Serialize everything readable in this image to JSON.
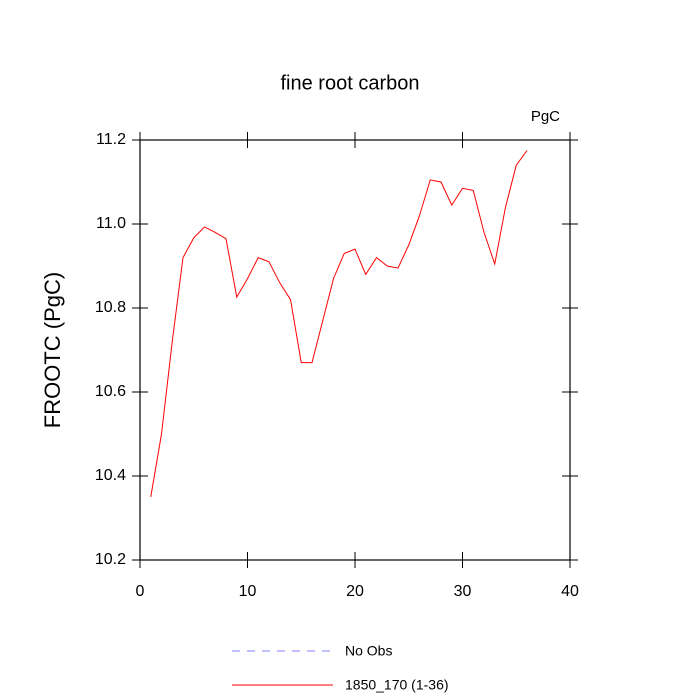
{
  "chart_data": {
    "type": "line",
    "title": "fine root carbon",
    "y_label": "FROOTC  (PgC)",
    "units_label": "PgC",
    "x": [
      1,
      2,
      3,
      4,
      5,
      6,
      7,
      8,
      9,
      10,
      11,
      12,
      13,
      14,
      15,
      16,
      17,
      18,
      19,
      20,
      21,
      22,
      23,
      24,
      25,
      26,
      27,
      28,
      29,
      30,
      31,
      32,
      33,
      34,
      35,
      36
    ],
    "series": [
      {
        "name": "No Obs",
        "color": "#8080ff",
        "dashed": true,
        "values": [
          null,
          null,
          null,
          null,
          null,
          null,
          null,
          null,
          null,
          null,
          null,
          null,
          null,
          null,
          null,
          null,
          null,
          null,
          null,
          null,
          null,
          null,
          null,
          null,
          null,
          null,
          null,
          null,
          null,
          null,
          null,
          null,
          null,
          null,
          null,
          null
        ]
      },
      {
        "name": "1850_170 (1-36)",
        "color": "#ff0000",
        "dashed": false,
        "values": [
          10.35,
          10.5,
          10.72,
          10.92,
          10.967,
          10.993,
          10.98,
          10.965,
          10.826,
          10.87,
          10.92,
          10.91,
          10.86,
          10.82,
          10.67,
          10.67,
          10.77,
          10.87,
          10.93,
          10.94,
          10.88,
          10.92,
          10.9,
          10.895,
          10.95,
          11.02,
          11.105,
          11.1,
          11.045,
          11.085,
          11.08,
          10.98,
          10.905,
          11.04,
          11.14,
          11.175
        ]
      }
    ],
    "xlim": [
      0,
      40
    ],
    "xticks": [
      0,
      10,
      20,
      30,
      40
    ],
    "ylim": [
      10.2,
      11.2
    ],
    "yticks": [
      10.2,
      10.4,
      10.6,
      10.8,
      {
        "value": 11,
        "label": "11.0"
      },
      11.2
    ]
  }
}
